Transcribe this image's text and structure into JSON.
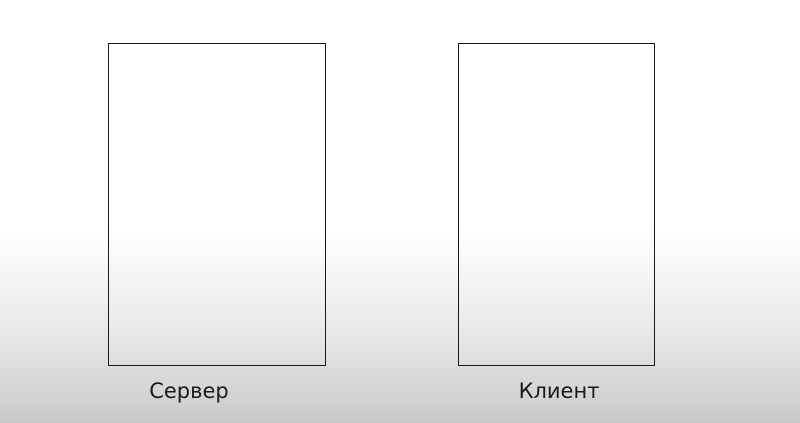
{
  "diagram": {
    "nodes": [
      {
        "id": "server",
        "label": "Сервер"
      },
      {
        "id": "client",
        "label": "Клиент"
      }
    ]
  }
}
